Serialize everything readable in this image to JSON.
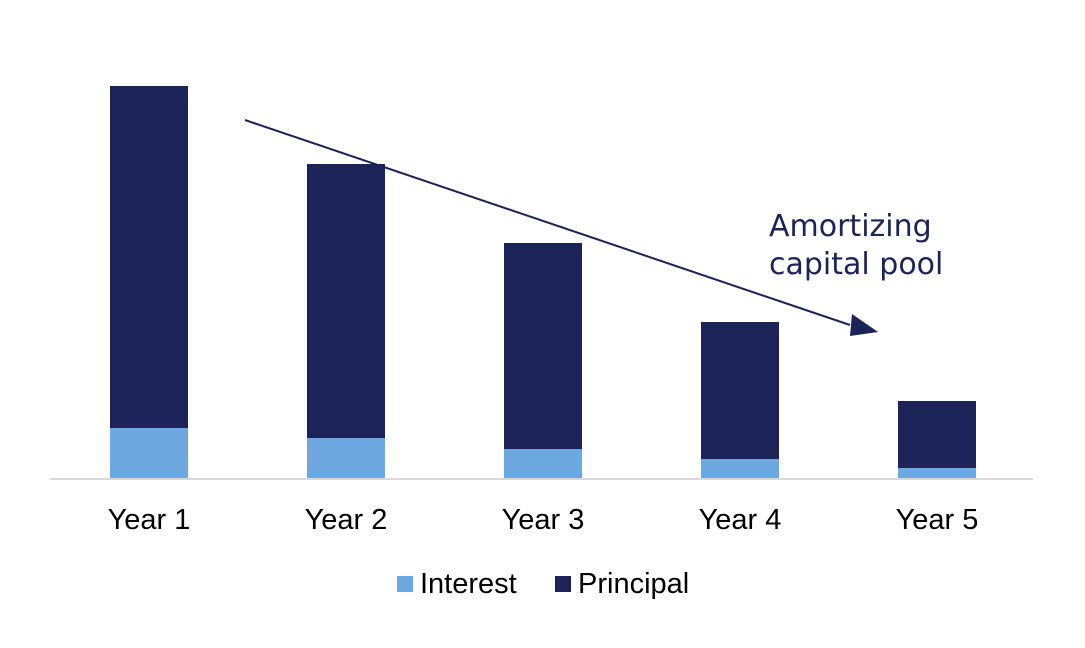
{
  "chart_data": {
    "type": "bar",
    "stacked": true,
    "categories": [
      "Year 1",
      "Year 2",
      "Year 3",
      "Year 4",
      "Year 5"
    ],
    "series": [
      {
        "name": "Interest",
        "values": [
          50,
          40,
          29,
          19,
          10
        ],
        "color": "#6ea8e0"
      },
      {
        "name": "Principal",
        "values": [
          342,
          274,
          206,
          137,
          67
        ],
        "color": "#1b2358"
      }
    ],
    "ylim": [
      0,
      400
    ],
    "title": "",
    "xlabel": "",
    "ylabel": "",
    "grid": false,
    "y_axis_visible": false,
    "legend_position": "bottom",
    "annotation": {
      "lines": [
        "Amortizing",
        "capital pool"
      ],
      "color": "#1b2358",
      "arrow": "trend arrow pointing down-right from Year 1 toward Year 5"
    },
    "axis_color": "#d9d9d9"
  }
}
